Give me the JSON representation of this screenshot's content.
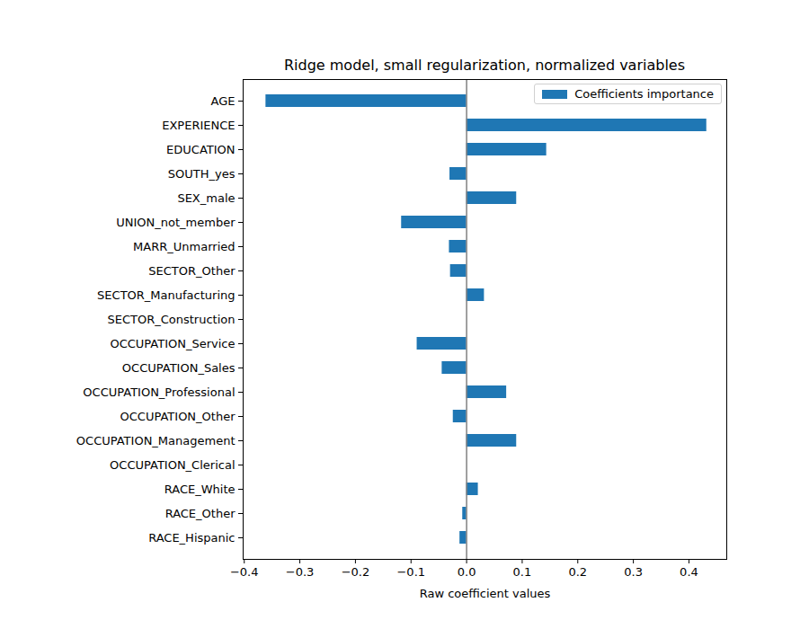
{
  "chart_data": {
    "type": "bar",
    "orientation": "horizontal",
    "title": "Ridge model, small regularization, normalized variables",
    "xlabel": "Raw coefficient values",
    "categories": [
      "AGE",
      "EXPERIENCE",
      "EDUCATION",
      "SOUTH_yes",
      "SEX_male",
      "UNION_not_member",
      "MARR_Unmarried",
      "SECTOR_Other",
      "SECTOR_Manufacturing",
      "SECTOR_Construction",
      "OCCUPATION_Service",
      "OCCUPATION_Sales",
      "OCCUPATION_Professional",
      "OCCUPATION_Other",
      "OCCUPATION_Management",
      "OCCUPATION_Clerical",
      "RACE_White",
      "RACE_Other",
      "RACE_Hispanic"
    ],
    "series": [
      {
        "name": "Coefficients importance",
        "color": "#1f77b4",
        "values": [
          -0.361,
          0.432,
          0.144,
          -0.03,
          0.09,
          -0.117,
          -0.031,
          -0.029,
          0.032,
          0.0,
          -0.089,
          -0.044,
          0.072,
          -0.024,
          0.09,
          0.0,
          0.021,
          -0.007,
          -0.012
        ]
      }
    ],
    "xlim": [
      -0.402,
      0.468
    ],
    "xticks": [
      {
        "value": -0.4,
        "label": "−0.4"
      },
      {
        "value": -0.3,
        "label": "−0.3"
      },
      {
        "value": -0.2,
        "label": "−0.2"
      },
      {
        "value": -0.1,
        "label": "−0.1"
      },
      {
        "value": 0,
        "label": "0.0"
      },
      0.1,
      0.2,
      0.3,
      0.4
    ],
    "legend": "upper right",
    "grid": false
  }
}
